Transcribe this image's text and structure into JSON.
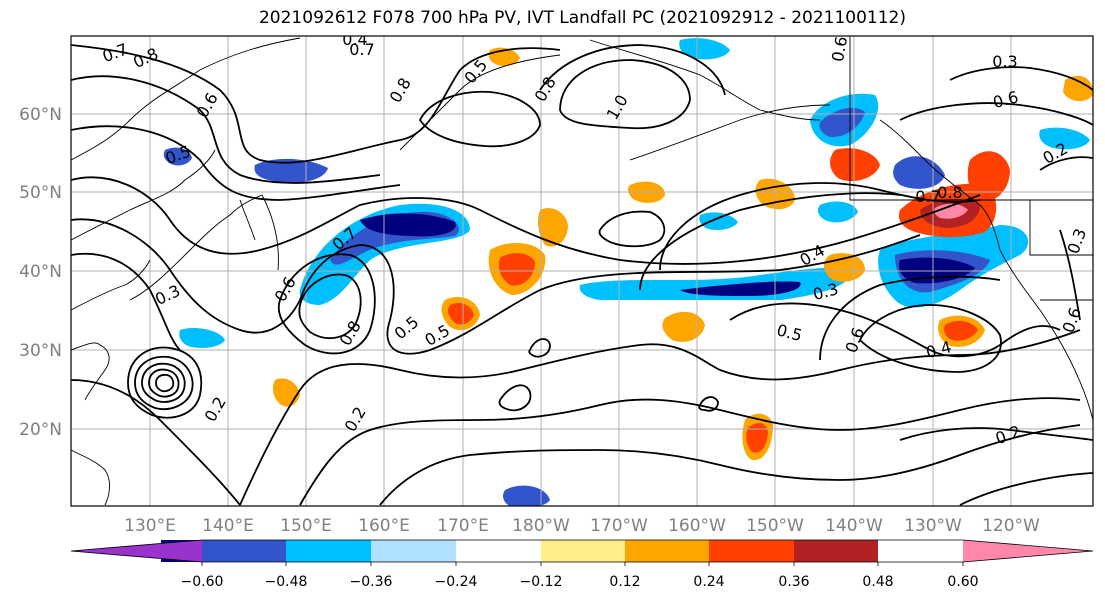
{
  "title": "2021092612 F078 700 hPa PV, IVT Landfall PC (2021092912 - 2021100112)",
  "lat_labels": [
    "60°N",
    "50°N",
    "40°N",
    "30°N",
    "20°N"
  ],
  "lon_labels": [
    "130°E",
    "140°E",
    "150°E",
    "160°E",
    "170°E",
    "180°W",
    "170°W",
    "160°W",
    "150°W",
    "140°W",
    "130°W",
    "120°W"
  ],
  "colorbar": {
    "colors": [
      "#9933cc",
      "#000080",
      "#3355cc",
      "#00bfff",
      "#b0e0ff",
      "#ffffff",
      "#ffee88",
      "#ffa500",
      "#ff4000",
      "#b22222",
      "#ff88aa"
    ],
    "tick_labels": [
      "-0.60",
      "-0.48",
      "-0.36",
      "-0.24",
      "-0.12",
      "0.12",
      "0.24",
      "0.36",
      "0.48",
      "0.60"
    ]
  },
  "contour_labels": [
    "0.7",
    "0.8",
    "0.6",
    "0.5",
    "0.4",
    "0.7",
    "0.8",
    "0.5",
    "0.8",
    "1.0",
    "0.6",
    "0.3",
    "0.6",
    "0.2",
    "0.3",
    "0.6",
    "0.7",
    "0.8",
    "0.5",
    "0.4",
    "0.3",
    "0.2",
    "0.6",
    "0.4",
    "0.3",
    "0.5",
    "0.6",
    "0.7",
    "0.8",
    "0.5",
    "0.2",
    "0.2"
  ]
}
